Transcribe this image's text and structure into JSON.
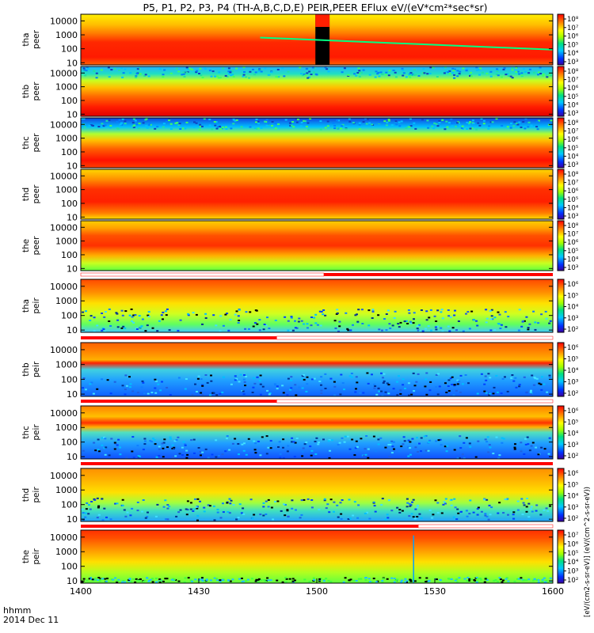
{
  "figure": {
    "title": "P5, P1, P2, P3, P4 (TH-A,B,C,D,E) PEIR,PEER EFlux eV/(eV*cm²*sec*sr)",
    "colorbar_label": "[eV/(cm2-s-sr-eV)] (eV/(cm^2-s-sr-eV))",
    "x_axis_label_line1": "hhmm",
    "x_axis_label_line2": "2014 Dec 11"
  },
  "chart_data": {
    "type": "heatmap",
    "x_ticks": [
      "1400",
      "1430",
      "1500",
      "1530",
      "1600"
    ],
    "x_range": [
      "14:00",
      "16:00"
    ],
    "y_scale": "log",
    "y_range_eV": [
      7,
      30000
    ],
    "y_ticks": [
      "10000",
      "1000",
      "100",
      "10"
    ],
    "colormap": "rainbow (blue-cyan-green-yellow-orange-red)",
    "panels": [
      {
        "probe": "tha",
        "species": "peer",
        "cbar_ticks": [
          "10⁸",
          "10⁷",
          "10⁶",
          "10⁵",
          "10⁴",
          "10³"
        ],
        "bar_after": null
      },
      {
        "probe": "thb",
        "species": "peer",
        "cbar_ticks": [
          "10⁸",
          "10⁷",
          "10⁶",
          "10⁵",
          "10⁴",
          "10³"
        ],
        "bar_after": null
      },
      {
        "probe": "thc",
        "species": "peer",
        "cbar_ticks": [
          "10⁸",
          "10⁷",
          "10⁶",
          "10⁵",
          "10⁴",
          "10³"
        ],
        "bar_after": null
      },
      {
        "probe": "thd",
        "species": "peer",
        "cbar_ticks": [
          "10⁸",
          "10⁷",
          "10⁶",
          "10⁵",
          "10⁴",
          "10³"
        ],
        "bar_after": null
      },
      {
        "probe": "the",
        "species": "peer",
        "cbar_ticks": [
          "10⁸",
          "10⁷",
          "10⁶",
          "10⁵",
          "10⁴",
          "10³"
        ],
        "bar_after": {
          "red_end_fraction": 1.0,
          "white_start": 0.0,
          "split": 0.515
        }
      },
      {
        "probe": "tha",
        "species": "peir",
        "cbar_ticks": [
          "10⁶",
          "10⁵",
          "10⁴",
          "10³",
          "10²"
        ],
        "bar_after": {
          "split": 0.415
        }
      },
      {
        "probe": "thb",
        "species": "peir",
        "cbar_ticks": [
          "10⁶",
          "10⁵",
          "10⁴",
          "10³",
          "10²"
        ],
        "bar_after": {
          "split": 0.415
        }
      },
      {
        "probe": "thc",
        "species": "peir",
        "cbar_ticks": [
          "10⁶",
          "10⁵",
          "10⁴",
          "10³",
          "10²"
        ],
        "bar_after": {
          "split": 1.0
        }
      },
      {
        "probe": "thd",
        "species": "peir",
        "cbar_ticks": [
          "10⁶",
          "10⁵",
          "10⁴",
          "10³",
          "10²"
        ],
        "bar_after": {
          "split": 0.715
        }
      },
      {
        "probe": "the",
        "species": "peir",
        "cbar_ticks": [
          "10⁷",
          "10⁶",
          "10⁵",
          "10⁴",
          "10³",
          "10²"
        ],
        "bar_after": null
      }
    ],
    "annotations": [
      {
        "panel": 0,
        "note": "data gap (black) near 15:00-15:02"
      },
      {
        "panel": 9,
        "note": "vertical spike near 15:27"
      }
    ]
  }
}
